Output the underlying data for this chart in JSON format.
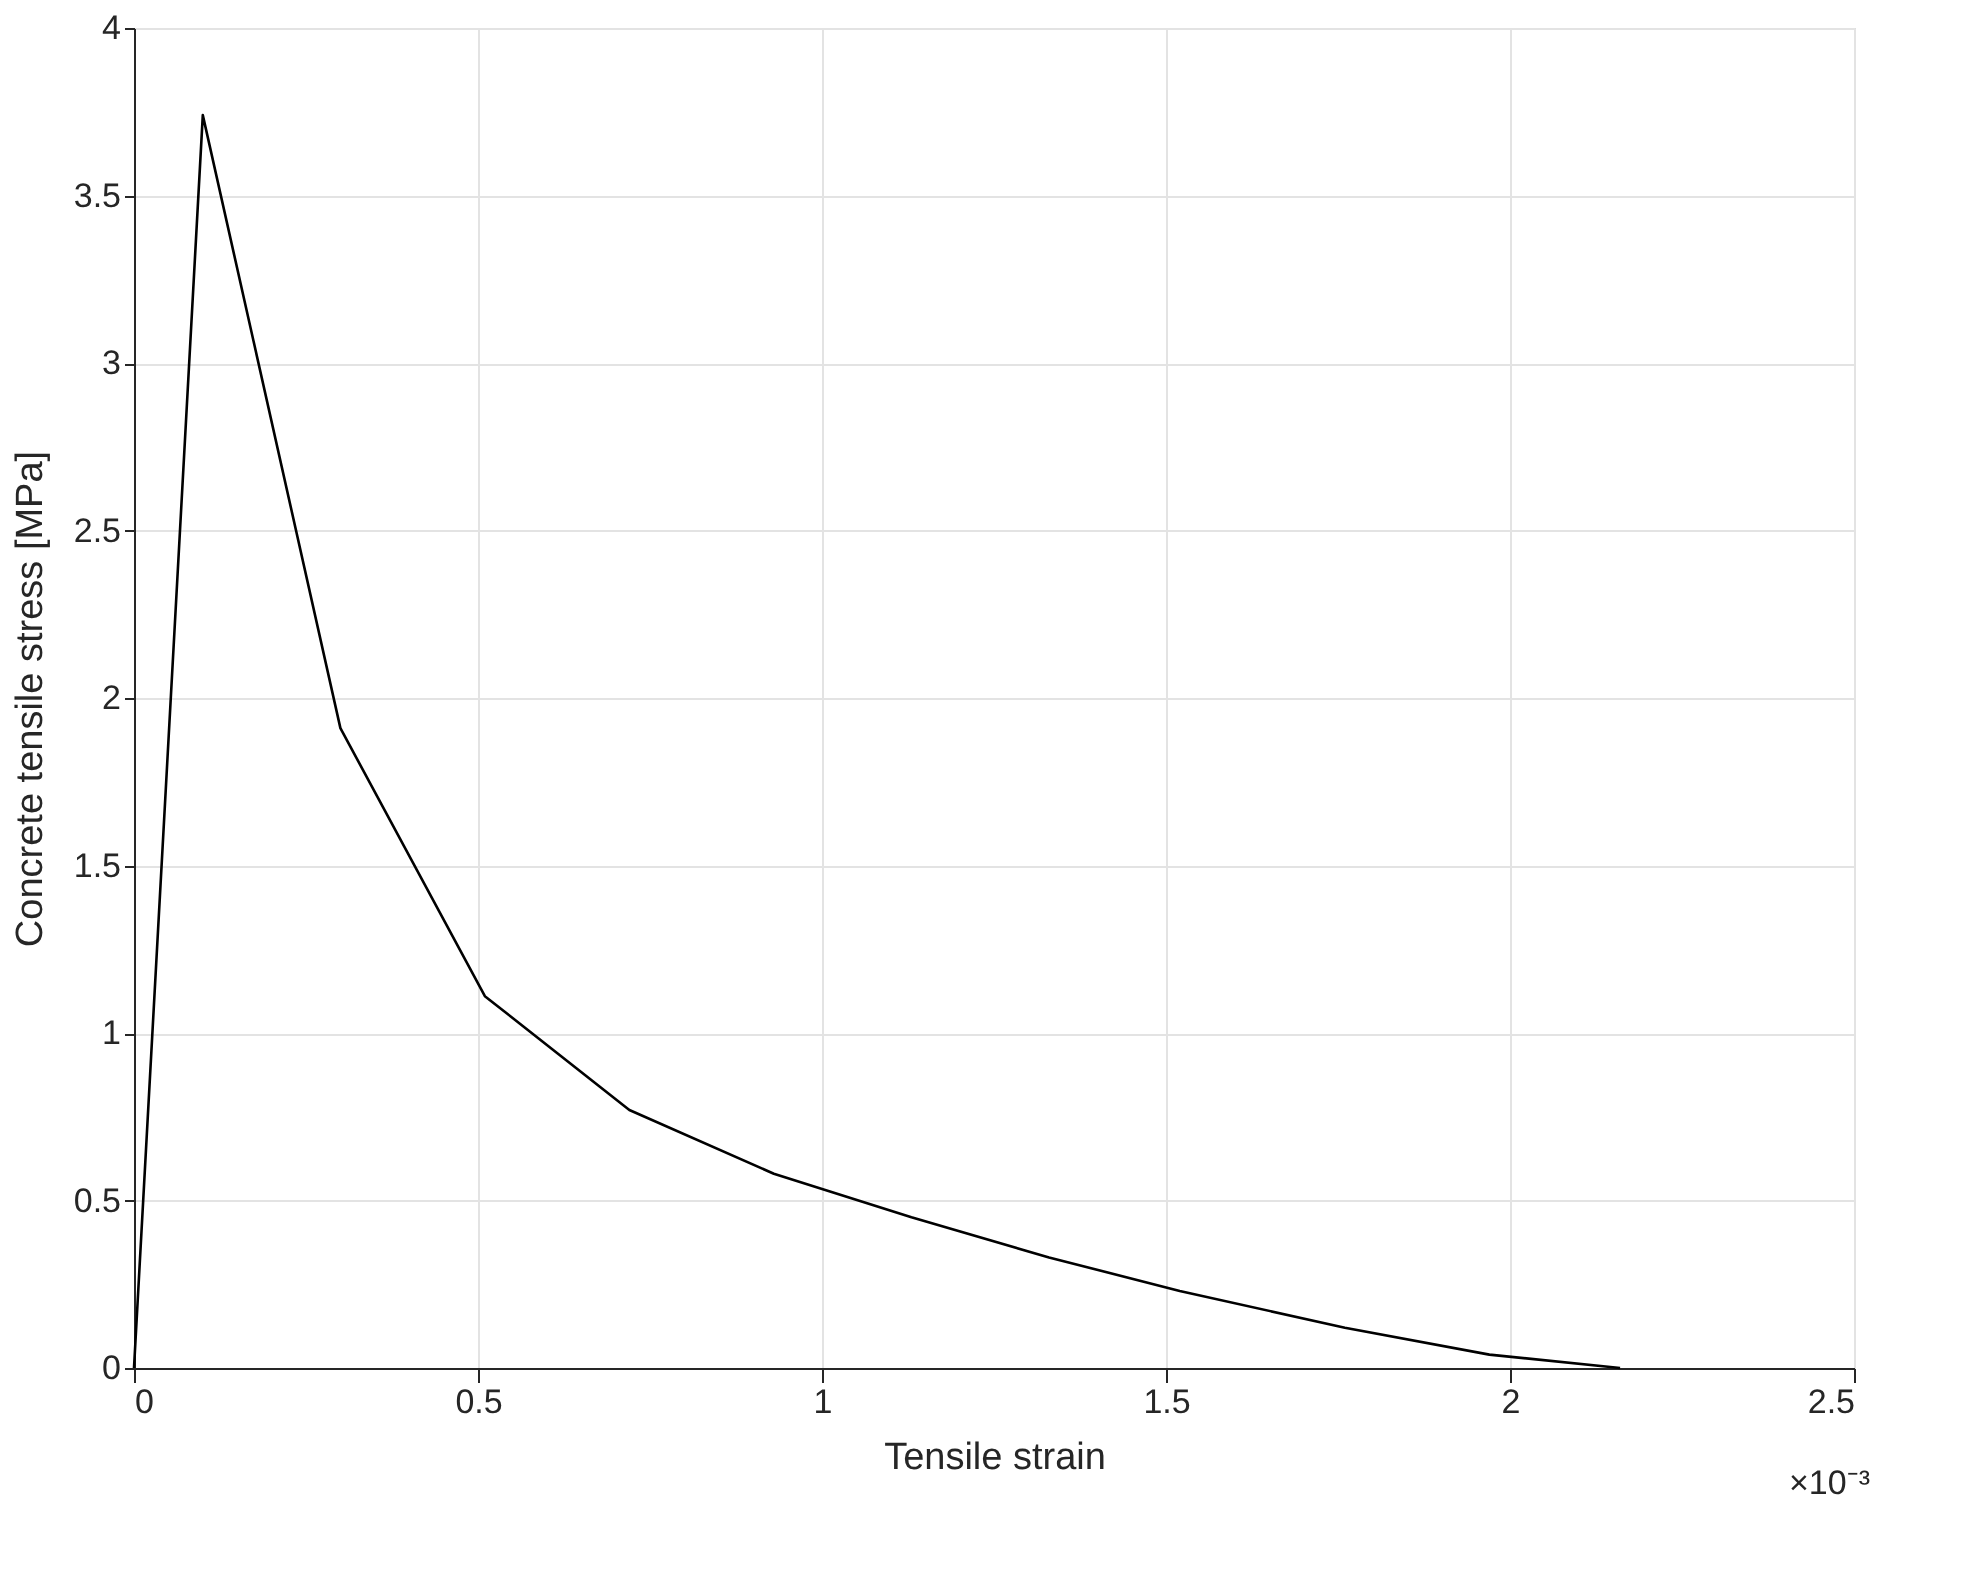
{
  "chart_data": {
    "type": "line",
    "xlabel": "Tensile strain",
    "ylabel": "Concrete tensile stress [MPa]",
    "x": [
      0,
      0.1,
      0.3,
      0.51,
      0.72,
      0.93,
      1.13,
      1.33,
      1.52,
      1.76,
      1.97,
      2.16
    ],
    "series": [
      {
        "color": "#000000",
        "values": [
          0,
          3.74,
          1.91,
          1.11,
          0.77,
          0.58,
          0.45,
          0.33,
          0.23,
          0.12,
          0.04,
          0
        ]
      }
    ],
    "xlim": [
      0,
      2.5
    ],
    "xticks": [
      0,
      0.5,
      1,
      1.5,
      2,
      2.5
    ],
    "ylim": [
      0,
      4
    ],
    "yticks": [
      0,
      0.5,
      1,
      1.5,
      2,
      2.5,
      3,
      3.5,
      4
    ],
    "grid": true,
    "legend": false,
    "marker": "none",
    "line_style": "solid",
    "annotations": [
      "×10⁻³"
    ]
  }
}
